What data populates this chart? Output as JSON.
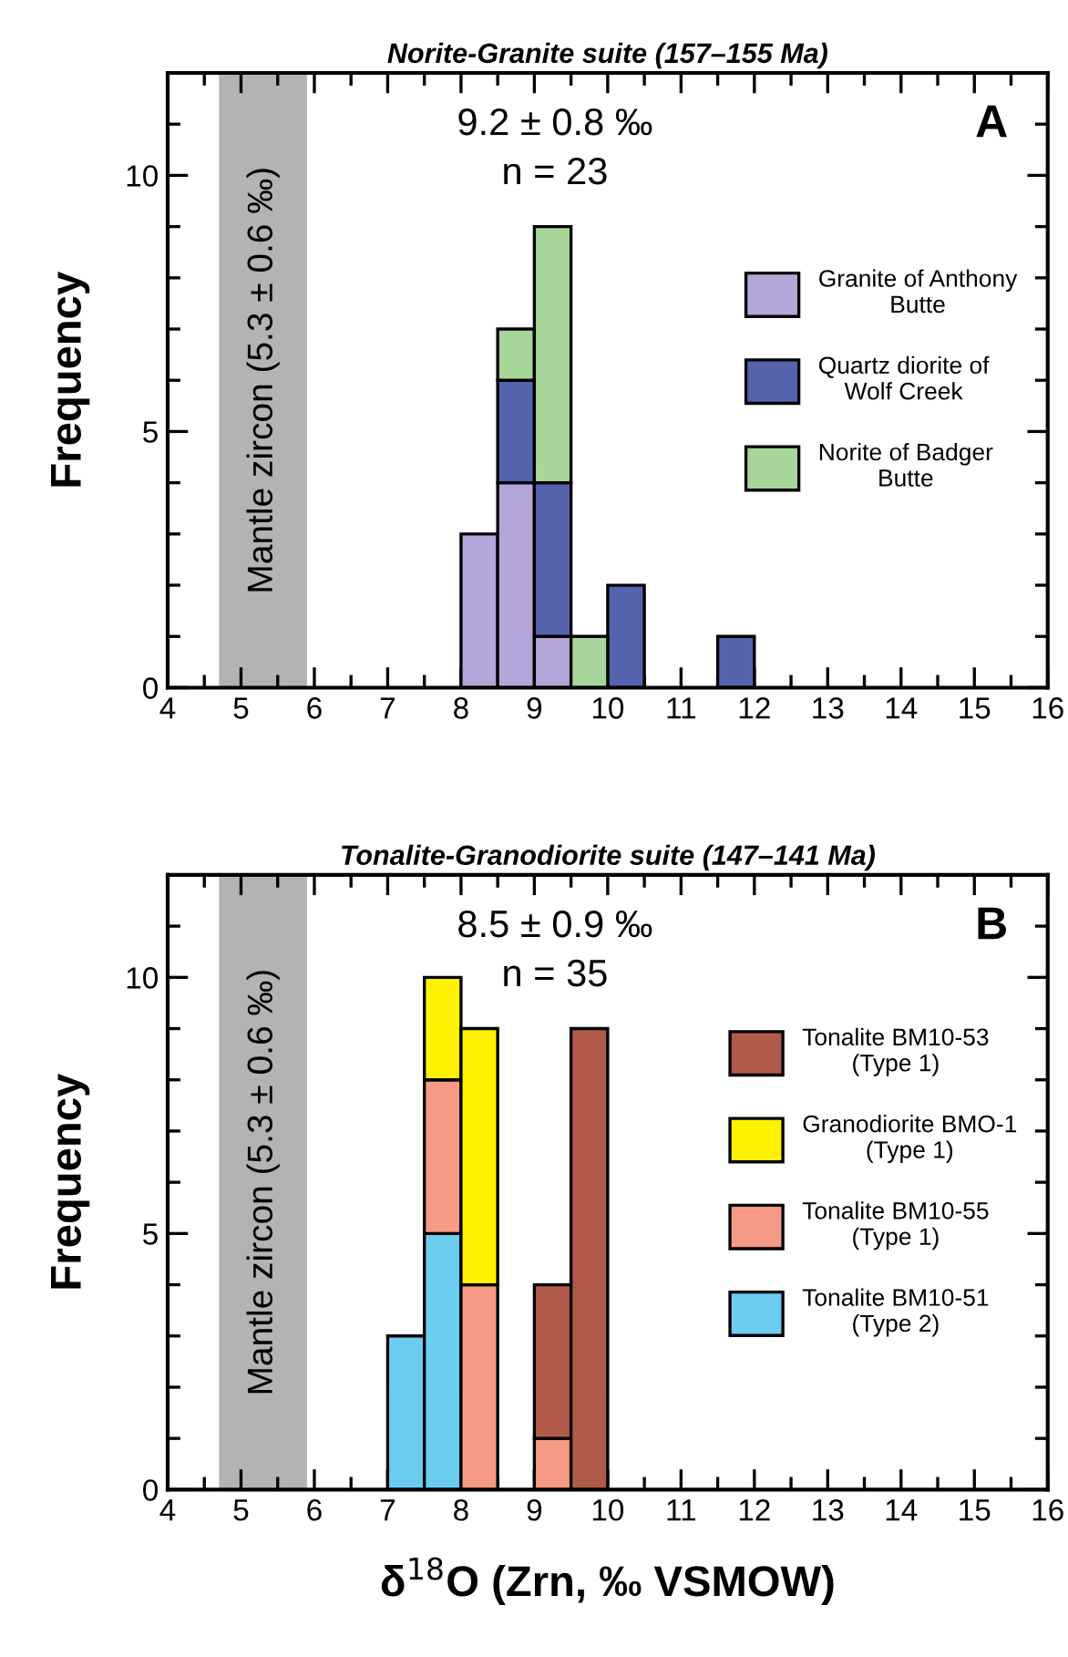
{
  "chart_data": [
    {
      "type": "bar",
      "title": "Norite-Granite suite (157–155 Ma)",
      "ylabel": "Frequency",
      "stacked": true,
      "x": [
        8.25,
        8.75,
        9.25,
        9.75,
        10.25,
        10.75,
        11.25,
        11.75
      ],
      "series": [
        {
          "name": "Granite of Anthony\nButte",
          "color": "#b4a6d8",
          "values": [
            3,
            4,
            1,
            null,
            null,
            null,
            null,
            null
          ]
        },
        {
          "name": "Quartz diorite of\nWolf Creek",
          "color": "#5562ae",
          "values": [
            null,
            2,
            3,
            null,
            2,
            null,
            null,
            1
          ]
        },
        {
          "name": "Norite of Badger\nButte",
          "color": "#a6d69a",
          "values": [
            null,
            1,
            5,
            1,
            null,
            null,
            null,
            null
          ]
        }
      ],
      "xlim": [
        4,
        16
      ],
      "xticks": [
        4,
        5,
        6,
        7,
        8,
        9,
        10,
        11,
        12,
        13,
        14,
        15,
        16
      ],
      "ylim": [
        0,
        12
      ],
      "yticks": [
        0,
        5,
        10
      ],
      "bands": [
        {
          "axis": "x",
          "from": 4.7,
          "to": 5.9,
          "label": "Mantle zircon (5.3 ± 0.6 ‰)",
          "color": "#b3b3b3"
        }
      ],
      "annotations": [
        "9.2 ± 0.8 ‰",
        "n = 23",
        "A"
      ],
      "legend": "right",
      "grid": false
    },
    {
      "type": "bar",
      "title": "Tonalite-Granodiorite suite (147–141 Ma)",
      "xlabel": "δ$^{18}$O (Zrn, ‰ VSMOW)",
      "ylabel": "Frequency",
      "stacked": true,
      "x": [
        7.25,
        7.75,
        8.25,
        8.75,
        9.25,
        9.75
      ],
      "series": [
        {
          "name": "Tonalite BM10-51\n(Type 2)",
          "color": "#6ccdf0",
          "values": [
            3,
            5,
            null,
            null,
            null,
            null
          ]
        },
        {
          "name": "Tonalite BM10-55\n(Type 1)",
          "color": "#f79a85",
          "values": [
            null,
            3,
            4,
            null,
            1,
            null
          ]
        },
        {
          "name": "Granodiorite BMO-1\n(Type 1)",
          "color": "#fff200",
          "values": [
            null,
            2,
            5,
            null,
            null,
            null
          ]
        },
        {
          "name": "Tonalite BM10-53\n(Type 1)",
          "color": "#b05a4a",
          "values": [
            null,
            null,
            null,
            null,
            3,
            9
          ]
        }
      ],
      "xlim": [
        4,
        16
      ],
      "xticks": [
        4,
        5,
        6,
        7,
        8,
        9,
        10,
        11,
        12,
        13,
        14,
        15,
        16
      ],
      "ylim": [
        0,
        12
      ],
      "yticks": [
        0,
        5,
        10
      ],
      "bands": [
        {
          "axis": "x",
          "from": 4.7,
          "to": 5.9,
          "label": "Mantle zircon (5.3 ± 0.6 ‰)",
          "color": "#b3b3b3"
        }
      ],
      "annotations": [
        "8.5 ± 0.9 ‰",
        "n = 35",
        "B"
      ],
      "legend": "right",
      "grid": false
    }
  ]
}
